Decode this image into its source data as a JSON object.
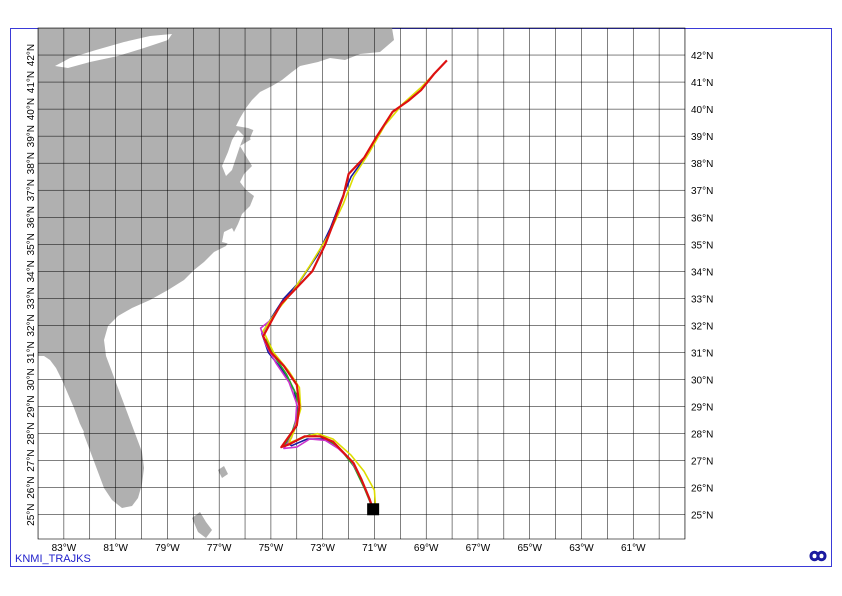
{
  "footer": {
    "label": "KNMI_TRAJKS"
  },
  "logo_icon": "knmi-logo-icon",
  "map": {
    "type": "trajectory-map",
    "lon_labels": [
      "83°W",
      "81°W",
      "79°W",
      "77°W",
      "75°W",
      "73°W",
      "71°W",
      "69°W",
      "67°W",
      "65°W",
      "63°W",
      "61°W"
    ],
    "lat_labels_right": [
      "25°N",
      "26°N",
      "27°N",
      "28°N",
      "29°N",
      "30°N",
      "31°N",
      "32°N",
      "33°N",
      "34°N",
      "35°N",
      "36°N",
      "37°N",
      "38°N",
      "39°N",
      "40°N",
      "41°N",
      "42°N"
    ],
    "lat_labels_left": [
      "25°N",
      "26°N",
      "27°N",
      "28°N",
      "29°N",
      "30°N",
      "31°N",
      "32°N",
      "33°N",
      "34°N",
      "35°N",
      "36°N",
      "37°N",
      "38°N",
      "39°N",
      "40°N",
      "41°N",
      "42°N"
    ],
    "lon_range": [
      -84,
      -59
    ],
    "lat_range": [
      24.1,
      43
    ],
    "land_color": "#b0b0b0",
    "grid_color": "#000000",
    "frame_color": "#3a3ad8",
    "start_point": {
      "lon": -71.05,
      "lat": 25.2
    },
    "series": [
      {
        "color": "#dd1111",
        "points": [
          [
            -71.05,
            25.2
          ],
          [
            -71.2,
            25.6
          ],
          [
            -71.5,
            26.3
          ],
          [
            -71.8,
            26.9
          ],
          [
            -72.2,
            27.3
          ],
          [
            -72.6,
            27.7
          ],
          [
            -73.1,
            27.9
          ],
          [
            -73.7,
            27.9
          ],
          [
            -74.3,
            27.6
          ],
          [
            -74.6,
            27.5
          ],
          [
            -74.3,
            27.9
          ],
          [
            -74.0,
            28.3
          ],
          [
            -73.9,
            29.0
          ],
          [
            -74.0,
            29.8
          ],
          [
            -74.5,
            30.5
          ],
          [
            -75.0,
            31.0
          ],
          [
            -75.3,
            31.6
          ],
          [
            -74.9,
            32.3
          ],
          [
            -74.6,
            32.8
          ],
          [
            -74.0,
            33.4
          ],
          [
            -73.4,
            34.0
          ],
          [
            -72.9,
            35.0
          ],
          [
            -72.5,
            36.0
          ],
          [
            -72.2,
            36.8
          ],
          [
            -72.0,
            37.6
          ],
          [
            -71.4,
            38.2
          ],
          [
            -70.9,
            39.0
          ],
          [
            -70.3,
            39.9
          ],
          [
            -69.7,
            40.3
          ],
          [
            -69.2,
            40.7
          ],
          [
            -68.7,
            41.3
          ],
          [
            -68.2,
            41.8
          ]
        ]
      },
      {
        "color": "#1a1aa0",
        "points": [
          [
            -71.05,
            25.2
          ],
          [
            -71.3,
            25.8
          ],
          [
            -71.6,
            26.5
          ],
          [
            -72.0,
            27.1
          ],
          [
            -72.5,
            27.6
          ],
          [
            -73.0,
            27.8
          ],
          [
            -73.6,
            27.8
          ],
          [
            -74.2,
            27.55
          ],
          [
            -74.4,
            27.7
          ],
          [
            -74.1,
            28.2
          ],
          [
            -73.95,
            28.8
          ],
          [
            -74.1,
            29.6
          ],
          [
            -74.6,
            30.4
          ],
          [
            -75.1,
            31.0
          ],
          [
            -75.35,
            31.7
          ],
          [
            -74.9,
            32.4
          ],
          [
            -74.5,
            33.0
          ],
          [
            -73.9,
            33.6
          ],
          [
            -73.2,
            34.6
          ],
          [
            -72.7,
            35.6
          ],
          [
            -72.3,
            36.6
          ],
          [
            -71.9,
            37.5
          ],
          [
            -71.3,
            38.3
          ]
        ]
      },
      {
        "color": "#22aa22",
        "points": [
          [
            -71.05,
            25.2
          ],
          [
            -71.4,
            26.0
          ],
          [
            -71.8,
            26.8
          ],
          [
            -72.3,
            27.4
          ],
          [
            -72.9,
            27.85
          ],
          [
            -73.5,
            27.95
          ],
          [
            -74.1,
            27.7
          ],
          [
            -74.45,
            27.6
          ],
          [
            -74.2,
            28.0
          ],
          [
            -74.0,
            28.6
          ],
          [
            -74.0,
            29.4
          ],
          [
            -74.4,
            30.2
          ],
          [
            -74.9,
            30.9
          ],
          [
            -75.2,
            31.5
          ]
        ]
      },
      {
        "color": "#cc33cc",
        "points": [
          [
            -71.05,
            25.2
          ],
          [
            -71.25,
            25.7
          ],
          [
            -71.55,
            26.4
          ],
          [
            -71.9,
            27.0
          ],
          [
            -72.4,
            27.45
          ],
          [
            -72.9,
            27.75
          ],
          [
            -73.5,
            27.8
          ],
          [
            -74.0,
            27.5
          ],
          [
            -74.5,
            27.45
          ],
          [
            -74.2,
            27.85
          ],
          [
            -74.05,
            28.4
          ],
          [
            -74.0,
            29.1
          ],
          [
            -74.3,
            29.9
          ],
          [
            -74.8,
            30.6
          ],
          [
            -75.2,
            31.3
          ],
          [
            -75.4,
            31.9
          ],
          [
            -75.0,
            32.2
          ]
        ]
      },
      {
        "color": "#dddd00",
        "points": [
          [
            -70.95,
            25.2
          ],
          [
            -71.0,
            25.9
          ],
          [
            -71.4,
            26.6
          ],
          [
            -71.9,
            27.2
          ],
          [
            -72.6,
            27.8
          ],
          [
            -73.2,
            28.0
          ],
          [
            -73.8,
            27.85
          ],
          [
            -74.3,
            27.65
          ],
          [
            -74.1,
            28.1
          ],
          [
            -73.85,
            28.9
          ],
          [
            -73.9,
            29.7
          ],
          [
            -74.3,
            30.3
          ],
          [
            -74.9,
            31.0
          ],
          [
            -75.3,
            31.8
          ],
          [
            -74.8,
            32.5
          ],
          [
            -74.2,
            33.2
          ],
          [
            -73.5,
            34.2
          ],
          [
            -72.8,
            35.3
          ],
          [
            -72.2,
            36.5
          ],
          [
            -71.8,
            37.5
          ],
          [
            -71.2,
            38.4
          ],
          [
            -70.6,
            39.4
          ],
          [
            -69.9,
            40.2
          ],
          [
            -69.2,
            40.8
          ],
          [
            -68.6,
            41.4
          ]
        ]
      }
    ]
  }
}
